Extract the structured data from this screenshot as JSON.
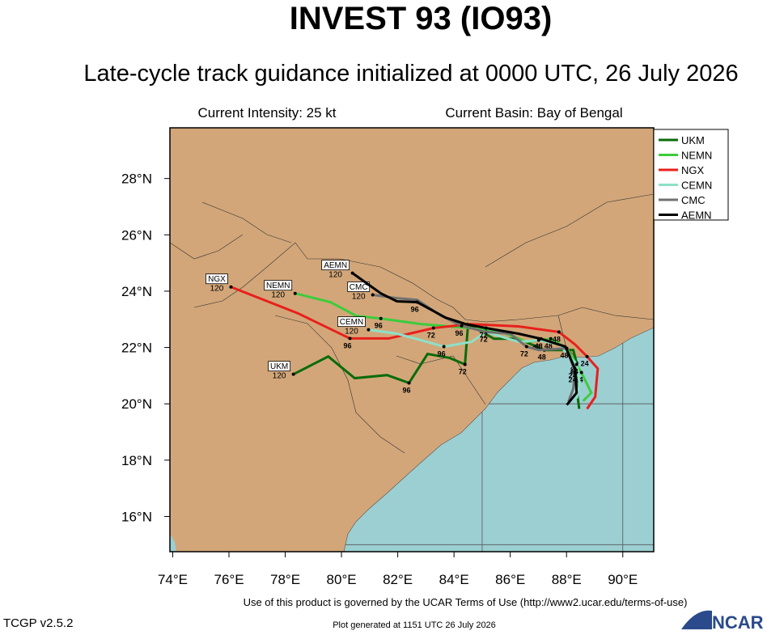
{
  "chart_data": {
    "type": "track",
    "title": "INVEST 93 (IO93)",
    "subtitle": "Late-cycle track guidance initialized at 0000 UTC, 26 July 2026",
    "intensity": "Current Intensity: 25 kt",
    "basin": "Current Basin: Bay of Bengal",
    "terms": "Use of this product is governed by the UCAR Terms of Use (http://www2.ucar.edu/terms-of-use)",
    "version": "TCGP v2.5.2",
    "generated": "Plot generated at 1151 UTC   26 July 2026",
    "logo": "NCAR",
    "xlim": [
      73.9,
      91.1
    ],
    "ylim": [
      14.75,
      29.8
    ],
    "xticks": [
      {
        "value": 74,
        "label": "74°E"
      },
      {
        "value": 76,
        "label": "76°E"
      },
      {
        "value": 78,
        "label": "78°E"
      },
      {
        "value": 80,
        "label": "80°E"
      },
      {
        "value": 82,
        "label": "82°E"
      },
      {
        "value": 84,
        "label": "84°E"
      },
      {
        "value": 86,
        "label": "86°E"
      },
      {
        "value": 88,
        "label": "88°E"
      },
      {
        "value": 90,
        "label": "90°E"
      }
    ],
    "yticks": [
      {
        "value": 16,
        "label": "16°N"
      },
      {
        "value": 18,
        "label": "18°N"
      },
      {
        "value": 20,
        "label": "20°N"
      },
      {
        "value": 22,
        "label": "22°N"
      },
      {
        "value": 24,
        "label": "24°N"
      },
      {
        "value": 26,
        "label": "26°N"
      },
      {
        "value": 28,
        "label": "28°N"
      }
    ],
    "grid_lon": [
      85,
      90
    ],
    "grid_lat": [
      15,
      20
    ],
    "series": [
      {
        "name": "UKM",
        "color": "#0a6b0a",
        "x": [
          88.45,
          88.36,
          88.36,
          88.24,
          87.21,
          86.29,
          85.42,
          84.5,
          84.39,
          83.84,
          83.06,
          82.4,
          81.62,
          80.47,
          79.53,
          78.29
        ],
        "y": [
          19.82,
          20.54,
          21.45,
          21.91,
          21.91,
          22.31,
          22.31,
          22.83,
          21.4,
          21.63,
          21.77,
          20.74,
          21.02,
          20.91,
          21.68,
          21.05
        ],
        "hours": [
          null,
          null,
          24,
          null,
          48,
          null,
          null,
          null,
          72,
          null,
          null,
          96,
          null,
          null,
          null,
          120
        ]
      },
      {
        "name": "NEMN",
        "color": "#3ccc3c",
        "x": [
          88.59,
          88.88,
          88.53,
          88.01,
          87.44,
          86.58,
          85.71,
          84.56,
          82.83,
          81.4,
          80.53,
          79.61,
          78.35
        ],
        "y": [
          20.1,
          20.39,
          21.11,
          21.97,
          22.31,
          22.2,
          22.55,
          22.69,
          22.83,
          23.03,
          23.12,
          23.61,
          23.92
        ],
        "hours": [
          null,
          null,
          24,
          null,
          48,
          null,
          null,
          null,
          null,
          96,
          null,
          null,
          120
        ]
      },
      {
        "name": "NGX",
        "color": "#e8201c",
        "x": [
          88.73,
          89.02,
          89.11,
          88.73,
          88.3,
          87.73,
          86.29,
          84.56,
          83.27,
          81.68,
          80.3,
          78.46,
          76.07
        ],
        "y": [
          19.82,
          20.25,
          21.25,
          21.68,
          22.11,
          22.55,
          22.75,
          22.83,
          22.69,
          22.32,
          22.32,
          23.21,
          24.15
        ],
        "hours": [
          null,
          null,
          null,
          24,
          null,
          48,
          null,
          null,
          72,
          null,
          96,
          null,
          120
        ]
      },
      {
        "name": "CEMN",
        "color": "#8ee0c8",
        "x": [
          88.36,
          88.47,
          88.36,
          87.73,
          87.01,
          86.29,
          85.14,
          84.62,
          83.64,
          82.83,
          81.97,
          80.96
        ],
        "y": [
          20.19,
          20.68,
          21.4,
          22.11,
          22.26,
          22.2,
          22.55,
          22.2,
          22.03,
          22.26,
          22.49,
          22.63
        ],
        "hours": [
          null,
          null,
          24,
          null,
          48,
          null,
          72,
          null,
          96,
          null,
          null,
          120
        ]
      },
      {
        "name": "CMC",
        "color": "#707070",
        "x": [
          88.07,
          88.24,
          88.3,
          88.01,
          87.01,
          86.58,
          86.0,
          85.14,
          84.27,
          83.55,
          82.69,
          81.97,
          81.11
        ],
        "y": [
          20.08,
          20.54,
          21.11,
          21.97,
          21.91,
          22.03,
          22.49,
          22.55,
          22.77,
          23.12,
          23.69,
          23.75,
          23.87
        ],
        "hours": [
          null,
          null,
          24,
          48,
          null,
          72,
          null,
          null,
          96,
          null,
          null,
          null,
          120
        ]
      },
      {
        "name": "AEMN",
        "color": "#000000",
        "x": [
          88.01,
          88.36,
          88.3,
          87.96,
          87.09,
          86.29,
          85.14,
          84.42,
          83.7,
          82.69,
          81.97,
          81.4,
          80.39
        ],
        "y": [
          19.96,
          20.39,
          21.25,
          22.03,
          22.31,
          22.49,
          22.69,
          22.83,
          23.06,
          23.61,
          23.64,
          23.92,
          24.64
        ],
        "hours": [
          null,
          null,
          24,
          null,
          48,
          null,
          72,
          null,
          null,
          96,
          null,
          null,
          120
        ]
      }
    ]
  }
}
